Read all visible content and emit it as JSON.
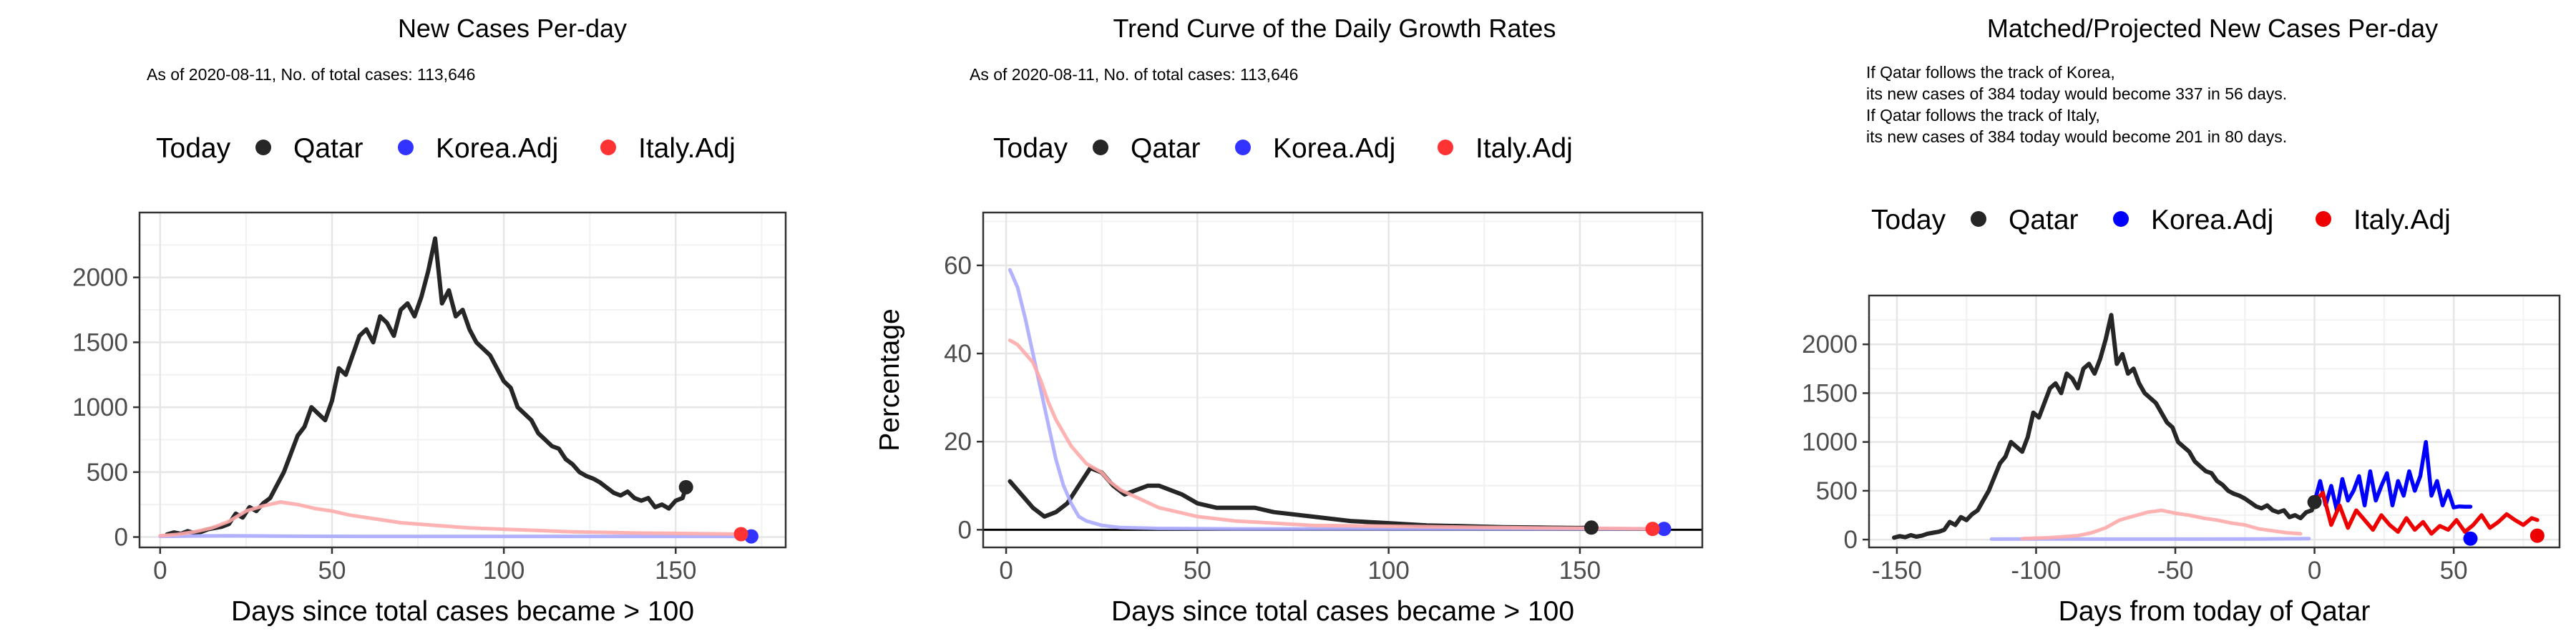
{
  "chart_data": [
    {
      "type": "line",
      "title": "New Cases Per-day",
      "subtitle": "As of 2020-08-11, No. of total cases: 113,646",
      "xlabel": "Days since total cases became > 100",
      "ylabel": "",
      "xlim": [
        -6,
        182
      ],
      "ylim": [
        -80,
        2500
      ],
      "xticks": [
        0,
        50,
        100,
        150
      ],
      "yticks": [
        0,
        500,
        1000,
        1500,
        2000
      ],
      "legend_position": "top",
      "legend": {
        "title": "Today",
        "entries": [
          "Qatar",
          "Korea.Adj",
          "Italy.Adj"
        ]
      },
      "colors": {
        "Qatar": "#262626",
        "Korea.Adj": "#3333ff",
        "Italy.Adj": "#ff3333",
        "Korea.Adj.faded": "#aaaaff",
        "Italy.Adj.faded": "#ffaaaa"
      },
      "series": [
        {
          "name": "Qatar",
          "x": [
            2,
            4,
            6,
            8,
            10,
            12,
            14,
            16,
            18,
            20,
            22,
            24,
            26,
            28,
            30,
            32,
            34,
            36,
            38,
            40,
            42,
            44,
            46,
            48,
            50,
            52,
            54,
            56,
            58,
            60,
            62,
            64,
            66,
            68,
            70,
            72,
            74,
            76,
            78,
            80,
            82,
            84,
            86,
            88,
            90,
            92,
            94,
            96,
            98,
            100,
            102,
            104,
            106,
            108,
            110,
            112,
            114,
            116,
            118,
            120,
            122,
            124,
            126,
            128,
            130,
            132,
            134,
            136,
            138,
            140,
            142,
            144,
            146,
            148,
            150,
            152,
            153
          ],
          "y": [
            20,
            35,
            25,
            45,
            30,
            40,
            60,
            70,
            80,
            100,
            180,
            150,
            230,
            200,
            260,
            300,
            400,
            500,
            640,
            780,
            850,
            1000,
            950,
            900,
            1050,
            1300,
            1250,
            1400,
            1550,
            1600,
            1500,
            1700,
            1650,
            1550,
            1750,
            1800,
            1700,
            1850,
            2050,
            2300,
            1800,
            1900,
            1700,
            1750,
            1600,
            1500,
            1450,
            1400,
            1300,
            1200,
            1150,
            1000,
            950,
            900,
            800,
            750,
            700,
            680,
            600,
            560,
            500,
            470,
            450,
            420,
            380,
            340,
            320,
            350,
            300,
            280,
            300,
            230,
            250,
            220,
            280,
            300,
            384
          ]
        },
        {
          "name": "Korea.Adj",
          "x": [
            0,
            10,
            20,
            30,
            40,
            60,
            80,
            100,
            120,
            140,
            160,
            172
          ],
          "y": [
            5,
            8,
            10,
            8,
            6,
            5,
            5,
            5,
            5,
            5,
            5,
            5
          ]
        },
        {
          "name": "Italy.Adj",
          "x": [
            0,
            5,
            10,
            15,
            20,
            25,
            30,
            35,
            40,
            45,
            50,
            55,
            60,
            65,
            70,
            80,
            90,
            100,
            110,
            120,
            130,
            140,
            150,
            160,
            169
          ],
          "y": [
            10,
            20,
            40,
            70,
            120,
            200,
            240,
            270,
            250,
            220,
            200,
            170,
            150,
            130,
            110,
            90,
            70,
            60,
            50,
            40,
            35,
            30,
            28,
            25,
            22
          ]
        }
      ],
      "today_points": [
        {
          "name": "Qatar",
          "x": 153,
          "y": 384
        },
        {
          "name": "Korea.Adj",
          "x": 172,
          "y": 5
        },
        {
          "name": "Italy.Adj",
          "x": 169,
          "y": 22
        }
      ]
    },
    {
      "type": "line",
      "title": "Trend Curve of the Daily Growth Rates",
      "subtitle": "As of 2020-08-11, No. of total cases: 113,646",
      "xlabel": "Days since total cases became > 100",
      "ylabel": "Percentage",
      "xlim": [
        -6,
        182
      ],
      "ylim": [
        -4,
        72
      ],
      "xticks": [
        0,
        50,
        100,
        150
      ],
      "yticks": [
        0,
        20,
        40,
        60
      ],
      "hline": 0,
      "legend_position": "top",
      "legend": {
        "title": "Today",
        "entries": [
          "Qatar",
          "Korea.Adj",
          "Italy.Adj"
        ]
      },
      "colors": {
        "Qatar": "#262626",
        "Korea.Adj": "#3333ff",
        "Italy.Adj": "#ff3333",
        "Korea.Adj.faded": "#aaaaff",
        "Italy.Adj.faded": "#ffaaaa"
      },
      "series": [
        {
          "name": "Qatar",
          "x": [
            1,
            4,
            7,
            10,
            13,
            16,
            19,
            22,
            25,
            28,
            31,
            34,
            37,
            40,
            43,
            46,
            50,
            55,
            60,
            65,
            70,
            80,
            90,
            100,
            110,
            120,
            130,
            140,
            150,
            153
          ],
          "y": [
            11,
            8,
            5,
            3,
            4,
            6,
            10,
            14,
            13,
            10,
            8,
            9,
            10,
            10,
            9,
            8,
            6,
            5,
            5,
            5,
            4,
            3,
            2,
            1.5,
            1,
            0.8,
            0.6,
            0.5,
            0.4,
            0.5
          ]
        },
        {
          "name": "Korea.Adj",
          "x": [
            1,
            3,
            5,
            7,
            9,
            11,
            13,
            15,
            17,
            19,
            21,
            25,
            30,
            40,
            60,
            80,
            100,
            120,
            140,
            160,
            172
          ],
          "y": [
            59,
            55,
            48,
            40,
            32,
            24,
            16,
            10,
            6,
            3,
            2,
            1,
            0.5,
            0.3,
            0.2,
            0.2,
            0.2,
            0.2,
            0.2,
            0.2,
            0.2
          ]
        },
        {
          "name": "Italy.Adj",
          "x": [
            1,
            3,
            5,
            7,
            9,
            11,
            13,
            15,
            17,
            19,
            21,
            23,
            25,
            27,
            30,
            35,
            40,
            45,
            50,
            60,
            70,
            80,
            100,
            120,
            140,
            160,
            169
          ],
          "y": [
            43,
            42,
            40,
            38,
            34,
            29,
            25,
            22,
            19,
            17,
            15,
            14,
            13,
            11,
            9,
            7,
            5,
            4,
            3,
            2,
            1.5,
            1,
            0.8,
            0.6,
            0.4,
            0.3,
            0.2
          ]
        }
      ],
      "today_points": [
        {
          "name": "Qatar",
          "x": 153,
          "y": 0.5
        },
        {
          "name": "Korea.Adj",
          "x": 172,
          "y": 0.2
        },
        {
          "name": "Italy.Adj",
          "x": 169,
          "y": 0.2
        }
      ]
    },
    {
      "type": "line",
      "title": "Matched/Projected New Cases Per-day",
      "annotation": [
        "If Qatar follows the track of Korea,",
        "its new cases of 384 today would become 337 in 56 days.",
        "If Qatar follows the track of Italy,",
        "its new cases of 384 today would become 201 in 80 days."
      ],
      "xlabel": "Days from today of Qatar",
      "ylabel": "",
      "xlim": [
        -160,
        88
      ],
      "ylim": [
        -80,
        2500
      ],
      "xticks": [
        -150,
        -100,
        -50,
        0,
        50
      ],
      "yticks": [
        0,
        500,
        1000,
        1500,
        2000
      ],
      "legend_position": "top",
      "legend": {
        "title": "Today",
        "entries": [
          "Qatar",
          "Korea.Adj",
          "Italy.Adj"
        ]
      },
      "colors": {
        "Qatar": "#262626",
        "Korea.Adj": "#0000ff",
        "Italy.Adj": "#ee0000",
        "Korea.Adj.faded": "#aaaaff",
        "Italy.Adj.faded": "#ffaaaa"
      },
      "series": [
        {
          "name": "Qatar",
          "x": [
            -151,
            -149,
            -147,
            -145,
            -143,
            -141,
            -139,
            -137,
            -135,
            -133,
            -131,
            -129,
            -127,
            -125,
            -123,
            -121,
            -119,
            -117,
            -115,
            -113,
            -111,
            -109,
            -107,
            -105,
            -103,
            -101,
            -99,
            -97,
            -95,
            -93,
            -91,
            -89,
            -87,
            -85,
            -83,
            -81,
            -79,
            -77,
            -75,
            -73,
            -71,
            -69,
            -67,
            -65,
            -63,
            -61,
            -59,
            -57,
            -55,
            -53,
            -51,
            -49,
            -47,
            -45,
            -43,
            -41,
            -39,
            -37,
            -35,
            -33,
            -31,
            -29,
            -27,
            -25,
            -23,
            -21,
            -19,
            -17,
            -15,
            -13,
            -11,
            -9,
            -7,
            -5,
            -3,
            -1,
            0
          ],
          "y": [
            20,
            35,
            25,
            45,
            30,
            40,
            60,
            70,
            80,
            100,
            180,
            150,
            230,
            200,
            260,
            300,
            400,
            500,
            640,
            780,
            850,
            1000,
            950,
            900,
            1050,
            1300,
            1250,
            1400,
            1550,
            1600,
            1500,
            1700,
            1650,
            1550,
            1750,
            1800,
            1700,
            1850,
            2050,
            2300,
            1800,
            1900,
            1700,
            1750,
            1600,
            1500,
            1450,
            1400,
            1300,
            1200,
            1150,
            1000,
            950,
            900,
            800,
            750,
            700,
            680,
            600,
            560,
            500,
            470,
            450,
            420,
            380,
            340,
            320,
            350,
            300,
            280,
            300,
            230,
            250,
            220,
            280,
            300,
            384
          ]
        },
        {
          "name": "Korea.Adj",
          "x": [
            -116,
            -100,
            -80,
            -60,
            -40,
            -20,
            -10,
            -2
          ],
          "y": [
            5,
            6,
            5,
            5,
            5,
            6,
            8,
            10
          ]
        },
        {
          "name": "Italy.Adj",
          "x": [
            -105,
            -95,
            -85,
            -80,
            -75,
            -70,
            -65,
            -60,
            -55,
            -50,
            -45,
            -40,
            -35,
            -30,
            -25,
            -20,
            -15,
            -10,
            -5
          ],
          "y": [
            10,
            20,
            40,
            70,
            120,
            200,
            240,
            280,
            300,
            270,
            250,
            220,
            200,
            170,
            150,
            110,
            90,
            70,
            60
          ]
        },
        {
          "name": "Korea.Adj projected",
          "x": [
            0,
            2,
            4,
            6,
            8,
            10,
            12,
            14,
            16,
            18,
            20,
            22,
            24,
            26,
            28,
            30,
            32,
            34,
            36,
            38,
            40,
            42,
            44,
            46,
            48,
            50,
            52,
            54,
            56
          ],
          "y": [
            384,
            600,
            350,
            550,
            300,
            620,
            400,
            500,
            650,
            350,
            700,
            400,
            550,
            680,
            350,
            600,
            450,
            700,
            500,
            650,
            1000,
            450,
            600,
            350,
            500,
            330,
            340,
            337,
            337
          ]
        },
        {
          "name": "Italy.Adj projected",
          "x": [
            0,
            3,
            6,
            9,
            12,
            15,
            18,
            21,
            24,
            27,
            30,
            33,
            36,
            39,
            42,
            45,
            48,
            51,
            54,
            57,
            60,
            63,
            66,
            69,
            72,
            75,
            78,
            80
          ],
          "y": [
            384,
            480,
            150,
            350,
            120,
            300,
            200,
            100,
            250,
            150,
            80,
            220,
            100,
            180,
            60,
            140,
            100,
            200,
            80,
            150,
            250,
            120,
            180,
            260,
            200,
            150,
            220,
            201
          ]
        }
      ],
      "today_points": [
        {
          "name": "Qatar",
          "x": 0,
          "y": 384
        },
        {
          "name": "Korea.Adj",
          "x": 56,
          "y": 10
        },
        {
          "name": "Italy.Adj",
          "x": 80,
          "y": 40
        }
      ]
    }
  ]
}
